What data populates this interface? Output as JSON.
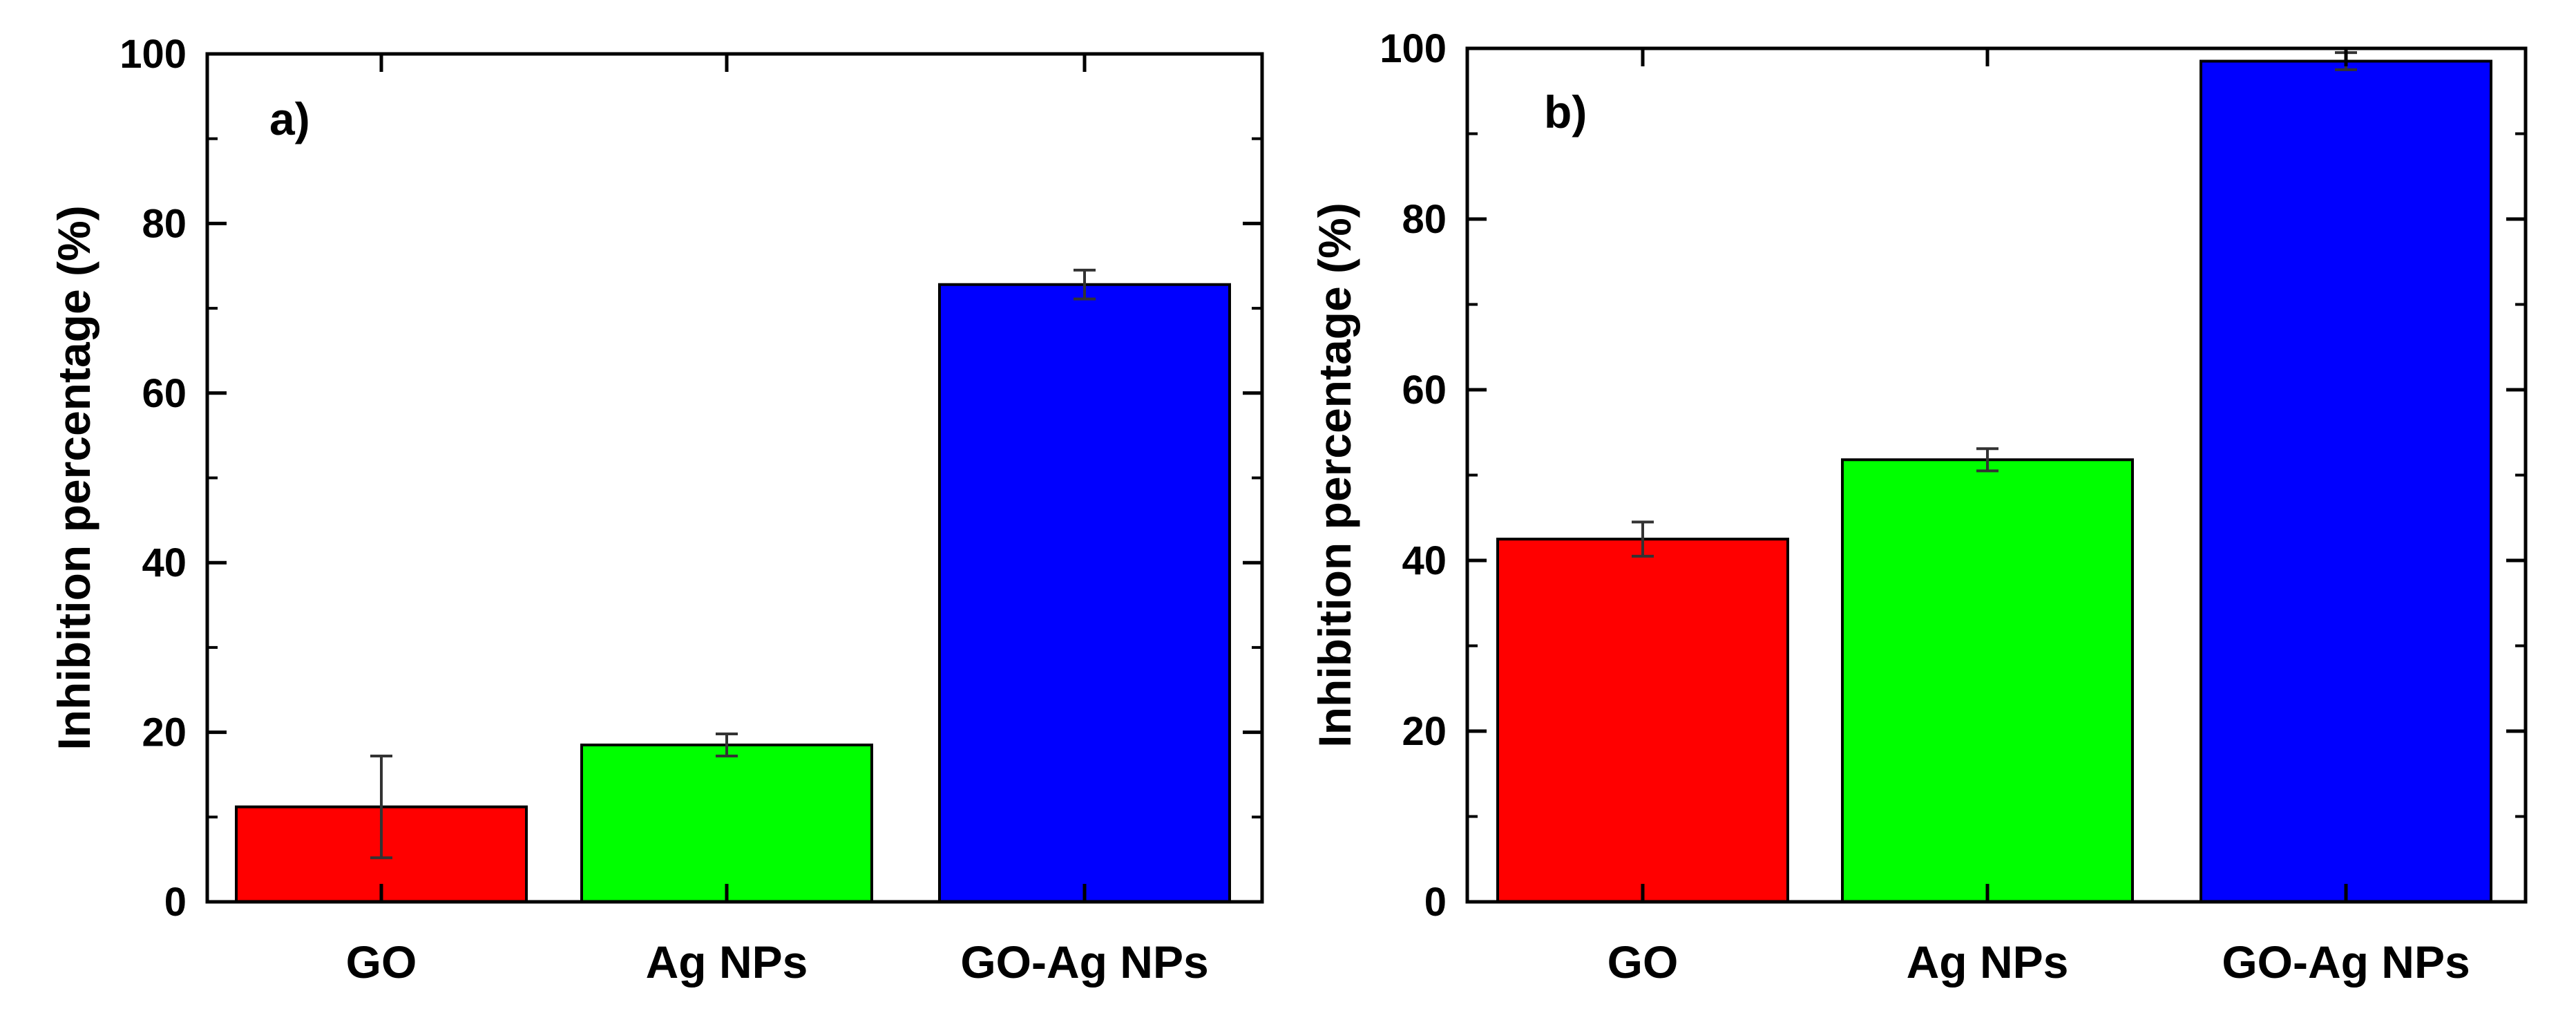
{
  "chart_data": [
    {
      "type": "bar",
      "panel_label": "a)",
      "categories": [
        "GO",
        "Ag NPs",
        "GO-Ag NPs"
      ],
      "values": [
        11.2,
        18.5,
        72.8
      ],
      "errors": [
        6.0,
        1.3,
        1.7
      ],
      "colors": [
        "#ff0000",
        "#00ff00",
        "#0000ff"
      ],
      "ylabel": "Inhibition percentage (%)",
      "xlabel": "",
      "ylim": [
        0,
        100
      ],
      "yticks": [
        "0",
        "20",
        "40",
        "60",
        "80",
        "100"
      ]
    },
    {
      "type": "bar",
      "panel_label": "b)",
      "categories": [
        "GO",
        "Ag NPs",
        "GO-Ag NPs"
      ],
      "values": [
        42.5,
        51.8,
        98.5
      ],
      "errors": [
        2.0,
        1.3,
        1.0
      ],
      "colors": [
        "#ff0000",
        "#00ff00",
        "#0000ff"
      ],
      "ylabel": "Inhibition percentage (%)",
      "xlabel": "",
      "ylim": [
        0,
        100
      ],
      "yticks": [
        "0",
        "20",
        "40",
        "60",
        "80",
        "100"
      ]
    }
  ]
}
